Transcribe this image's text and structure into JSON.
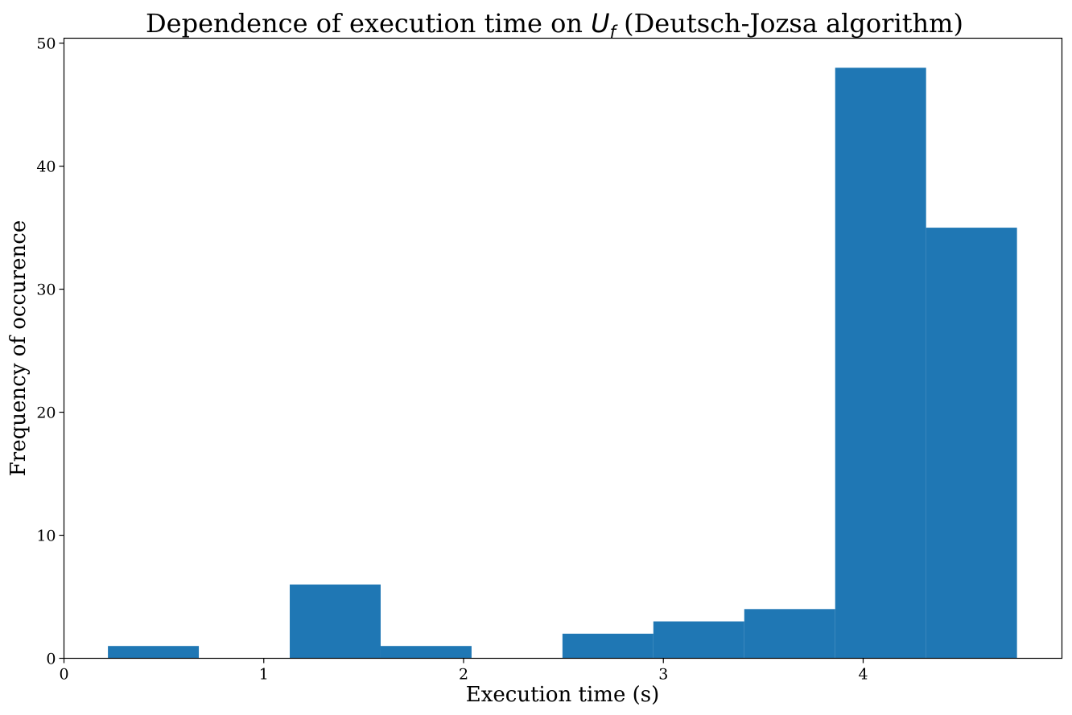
{
  "chart_data": {
    "type": "bar",
    "title": {
      "prefix": "Dependence of execution time on ",
      "math_main": "U",
      "math_sub": "f",
      "suffix": " (Deutsch-Jozsa algorithm)"
    },
    "xlabel": "Execution time (s)",
    "ylabel": "Frequency of occurence",
    "bins": [
      {
        "x0": 0.22,
        "x1": 0.675,
        "value": 1
      },
      {
        "x0": 0.675,
        "x1": 1.13,
        "value": 0
      },
      {
        "x0": 1.13,
        "x1": 1.585,
        "value": 6
      },
      {
        "x0": 1.585,
        "x1": 2.04,
        "value": 1
      },
      {
        "x0": 2.04,
        "x1": 2.495,
        "value": 0
      },
      {
        "x0": 2.495,
        "x1": 2.95,
        "value": 2
      },
      {
        "x0": 2.95,
        "x1": 3.405,
        "value": 3
      },
      {
        "x0": 3.405,
        "x1": 3.86,
        "value": 4
      },
      {
        "x0": 3.86,
        "x1": 4.315,
        "value": 48
      },
      {
        "x0": 4.315,
        "x1": 4.77,
        "value": 35
      }
    ],
    "xlim": [
      0,
      4.995
    ],
    "ylim": [
      0,
      50.4
    ],
    "xticks": [
      0,
      1,
      2,
      3,
      4
    ],
    "yticks": [
      0,
      10,
      20,
      30,
      40,
      50
    ],
    "bar_color": "#1f77b4",
    "grid": false,
    "legend": false
  }
}
